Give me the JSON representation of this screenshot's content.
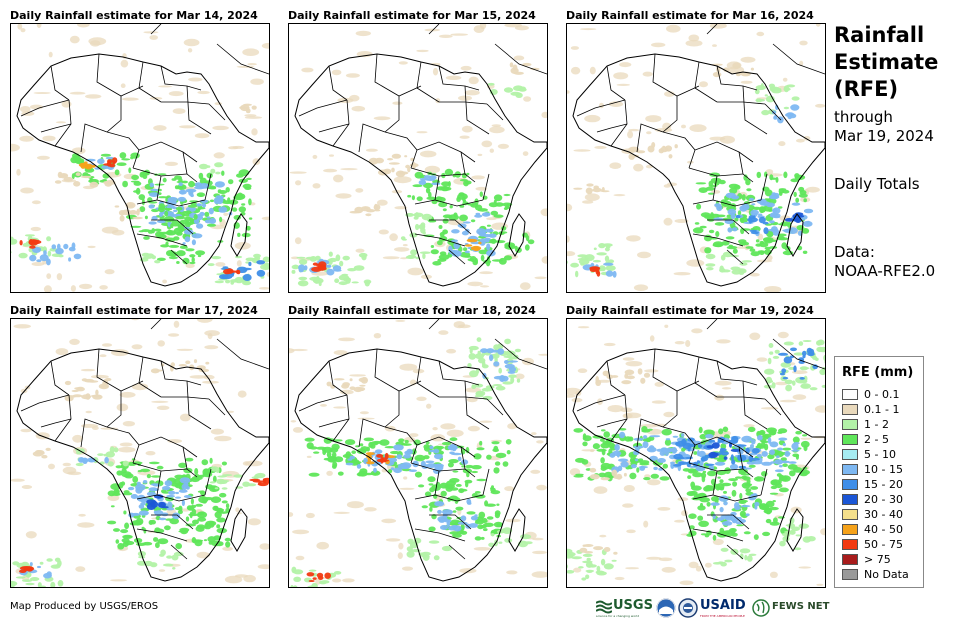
{
  "panels": [
    {
      "title": "Daily Rainfall estimate for Mar 14, 2024",
      "variant": 0
    },
    {
      "title": "Daily Rainfall estimate for Mar 15, 2024",
      "variant": 1
    },
    {
      "title": "Daily Rainfall estimate for Mar 16, 2024",
      "variant": 2
    },
    {
      "title": "Daily Rainfall estimate for Mar 17, 2024",
      "variant": 3
    },
    {
      "title": "Daily Rainfall estimate for Mar 18, 2024",
      "variant": 4
    },
    {
      "title": "Daily Rainfall estimate for Mar 19, 2024",
      "variant": 5
    }
  ],
  "side": {
    "title": "Rainfall Estimate (RFE)",
    "through_label": "through",
    "through_date": "Mar 19, 2024",
    "totals_label": "Daily Totals",
    "data_label": "Data:",
    "data_source": "NOAA-RFE2.0"
  },
  "legend": {
    "title": "RFE (mm)",
    "items": [
      {
        "label": "0 - 0.1",
        "color": "#ffffff"
      },
      {
        "label": "0.1 - 1",
        "color": "#e9d9bc"
      },
      {
        "label": "1 - 2",
        "color": "#b3f2a8"
      },
      {
        "label": "2 - 5",
        "color": "#5fe65a"
      },
      {
        "label": "5 - 10",
        "color": "#a6ecf2"
      },
      {
        "label": "10 - 15",
        "color": "#7eb8f2"
      },
      {
        "label": "15 - 20",
        "color": "#3f8ee8"
      },
      {
        "label": "20 - 30",
        "color": "#1b56d6"
      },
      {
        "label": "30 - 40",
        "color": "#f5e08c"
      },
      {
        "label": "40 - 50",
        "color": "#f5a21a"
      },
      {
        "label": "50 - 75",
        "color": "#f23a12"
      },
      {
        "label": "> 75",
        "color": "#a81c1c"
      },
      {
        "label": "No Data",
        "color": "#999999"
      }
    ]
  },
  "footer": {
    "credit": "Map Produced by USGS/EROS",
    "logos": {
      "usgs": "USGS",
      "usgs_tagline": "science for a changing world",
      "usaid": "USAID",
      "usaid_tagline": "FROM THE AMERICAN PEOPLE",
      "fews": "FEWS NET"
    }
  }
}
